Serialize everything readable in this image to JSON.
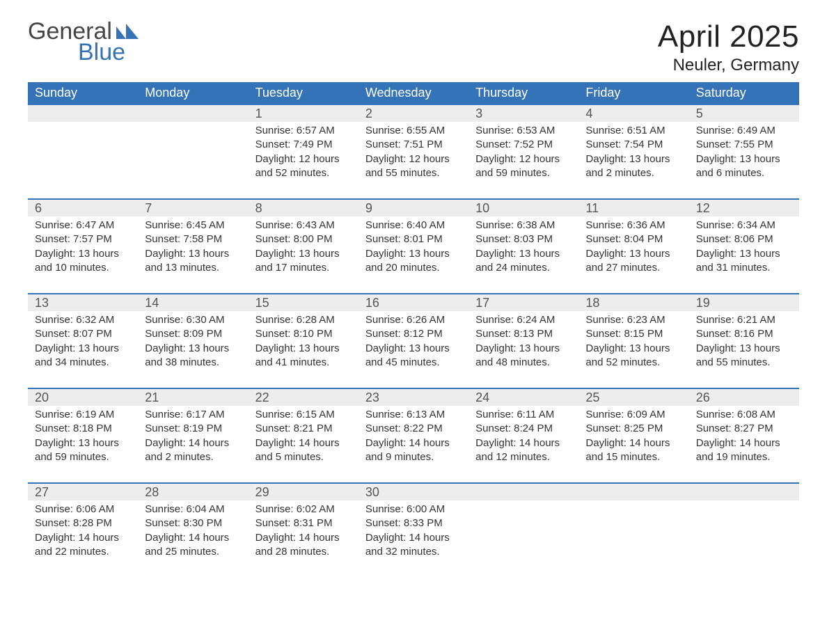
{
  "brand": {
    "word1": "General",
    "word2": "Blue",
    "logo_color": "#3573b9",
    "text_color": "#444"
  },
  "header": {
    "title": "April 2025",
    "location": "Neuler, Germany"
  },
  "calendar": {
    "header_bg": "#3573b9",
    "header_fg": "#ffffff",
    "daynum_bg": "#ededed",
    "week_border_color": "#3573b9",
    "text_color": "#333333",
    "columns": [
      "Sunday",
      "Monday",
      "Tuesday",
      "Wednesday",
      "Thursday",
      "Friday",
      "Saturday"
    ],
    "weeks": [
      {
        "days": [
          {
            "n": "",
            "empty": true
          },
          {
            "n": "",
            "empty": true
          },
          {
            "n": "1",
            "sunrise": "Sunrise: 6:57 AM",
            "sunset": "Sunset: 7:49 PM",
            "daylight": "Daylight: 12 hours and 52 minutes."
          },
          {
            "n": "2",
            "sunrise": "Sunrise: 6:55 AM",
            "sunset": "Sunset: 7:51 PM",
            "daylight": "Daylight: 12 hours and 55 minutes."
          },
          {
            "n": "3",
            "sunrise": "Sunrise: 6:53 AM",
            "sunset": "Sunset: 7:52 PM",
            "daylight": "Daylight: 12 hours and 59 minutes."
          },
          {
            "n": "4",
            "sunrise": "Sunrise: 6:51 AM",
            "sunset": "Sunset: 7:54 PM",
            "daylight": "Daylight: 13 hours and 2 minutes."
          },
          {
            "n": "5",
            "sunrise": "Sunrise: 6:49 AM",
            "sunset": "Sunset: 7:55 PM",
            "daylight": "Daylight: 13 hours and 6 minutes."
          }
        ]
      },
      {
        "days": [
          {
            "n": "6",
            "sunrise": "Sunrise: 6:47 AM",
            "sunset": "Sunset: 7:57 PM",
            "daylight": "Daylight: 13 hours and 10 minutes."
          },
          {
            "n": "7",
            "sunrise": "Sunrise: 6:45 AM",
            "sunset": "Sunset: 7:58 PM",
            "daylight": "Daylight: 13 hours and 13 minutes."
          },
          {
            "n": "8",
            "sunrise": "Sunrise: 6:43 AM",
            "sunset": "Sunset: 8:00 PM",
            "daylight": "Daylight: 13 hours and 17 minutes."
          },
          {
            "n": "9",
            "sunrise": "Sunrise: 6:40 AM",
            "sunset": "Sunset: 8:01 PM",
            "daylight": "Daylight: 13 hours and 20 minutes."
          },
          {
            "n": "10",
            "sunrise": "Sunrise: 6:38 AM",
            "sunset": "Sunset: 8:03 PM",
            "daylight": "Daylight: 13 hours and 24 minutes."
          },
          {
            "n": "11",
            "sunrise": "Sunrise: 6:36 AM",
            "sunset": "Sunset: 8:04 PM",
            "daylight": "Daylight: 13 hours and 27 minutes."
          },
          {
            "n": "12",
            "sunrise": "Sunrise: 6:34 AM",
            "sunset": "Sunset: 8:06 PM",
            "daylight": "Daylight: 13 hours and 31 minutes."
          }
        ]
      },
      {
        "days": [
          {
            "n": "13",
            "sunrise": "Sunrise: 6:32 AM",
            "sunset": "Sunset: 8:07 PM",
            "daylight": "Daylight: 13 hours and 34 minutes."
          },
          {
            "n": "14",
            "sunrise": "Sunrise: 6:30 AM",
            "sunset": "Sunset: 8:09 PM",
            "daylight": "Daylight: 13 hours and 38 minutes."
          },
          {
            "n": "15",
            "sunrise": "Sunrise: 6:28 AM",
            "sunset": "Sunset: 8:10 PM",
            "daylight": "Daylight: 13 hours and 41 minutes."
          },
          {
            "n": "16",
            "sunrise": "Sunrise: 6:26 AM",
            "sunset": "Sunset: 8:12 PM",
            "daylight": "Daylight: 13 hours and 45 minutes."
          },
          {
            "n": "17",
            "sunrise": "Sunrise: 6:24 AM",
            "sunset": "Sunset: 8:13 PM",
            "daylight": "Daylight: 13 hours and 48 minutes."
          },
          {
            "n": "18",
            "sunrise": "Sunrise: 6:23 AM",
            "sunset": "Sunset: 8:15 PM",
            "daylight": "Daylight: 13 hours and 52 minutes."
          },
          {
            "n": "19",
            "sunrise": "Sunrise: 6:21 AM",
            "sunset": "Sunset: 8:16 PM",
            "daylight": "Daylight: 13 hours and 55 minutes."
          }
        ]
      },
      {
        "days": [
          {
            "n": "20",
            "sunrise": "Sunrise: 6:19 AM",
            "sunset": "Sunset: 8:18 PM",
            "daylight": "Daylight: 13 hours and 59 minutes."
          },
          {
            "n": "21",
            "sunrise": "Sunrise: 6:17 AM",
            "sunset": "Sunset: 8:19 PM",
            "daylight": "Daylight: 14 hours and 2 minutes."
          },
          {
            "n": "22",
            "sunrise": "Sunrise: 6:15 AM",
            "sunset": "Sunset: 8:21 PM",
            "daylight": "Daylight: 14 hours and 5 minutes."
          },
          {
            "n": "23",
            "sunrise": "Sunrise: 6:13 AM",
            "sunset": "Sunset: 8:22 PM",
            "daylight": "Daylight: 14 hours and 9 minutes."
          },
          {
            "n": "24",
            "sunrise": "Sunrise: 6:11 AM",
            "sunset": "Sunset: 8:24 PM",
            "daylight": "Daylight: 14 hours and 12 minutes."
          },
          {
            "n": "25",
            "sunrise": "Sunrise: 6:09 AM",
            "sunset": "Sunset: 8:25 PM",
            "daylight": "Daylight: 14 hours and 15 minutes."
          },
          {
            "n": "26",
            "sunrise": "Sunrise: 6:08 AM",
            "sunset": "Sunset: 8:27 PM",
            "daylight": "Daylight: 14 hours and 19 minutes."
          }
        ]
      },
      {
        "days": [
          {
            "n": "27",
            "sunrise": "Sunrise: 6:06 AM",
            "sunset": "Sunset: 8:28 PM",
            "daylight": "Daylight: 14 hours and 22 minutes."
          },
          {
            "n": "28",
            "sunrise": "Sunrise: 6:04 AM",
            "sunset": "Sunset: 8:30 PM",
            "daylight": "Daylight: 14 hours and 25 minutes."
          },
          {
            "n": "29",
            "sunrise": "Sunrise: 6:02 AM",
            "sunset": "Sunset: 8:31 PM",
            "daylight": "Daylight: 14 hours and 28 minutes."
          },
          {
            "n": "30",
            "sunrise": "Sunrise: 6:00 AM",
            "sunset": "Sunset: 8:33 PM",
            "daylight": "Daylight: 14 hours and 32 minutes."
          },
          {
            "n": "",
            "empty": true
          },
          {
            "n": "",
            "empty": true
          },
          {
            "n": "",
            "empty": true
          }
        ]
      }
    ]
  }
}
